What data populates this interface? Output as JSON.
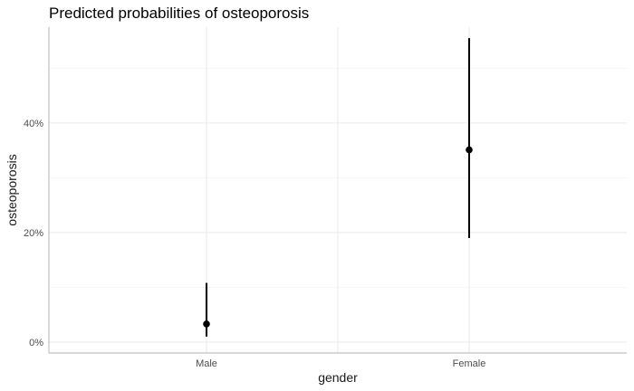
{
  "chart_data": {
    "type": "scatter",
    "title": "Predicted probabilities of osteoporosis",
    "xlabel": "gender",
    "ylabel": "osteoporosis",
    "categories": [
      "Male",
      "Female"
    ],
    "estimates": [
      0.033,
      0.351
    ],
    "ci_lower": [
      0.01,
      0.19
    ],
    "ci_upper": [
      0.108,
      0.555
    ],
    "yticks": [
      0,
      0.2,
      0.4
    ],
    "ytick_labels": [
      "0%",
      "20%",
      "40%"
    ],
    "ylim": [
      -0.02,
      0.575
    ],
    "grid": true
  }
}
